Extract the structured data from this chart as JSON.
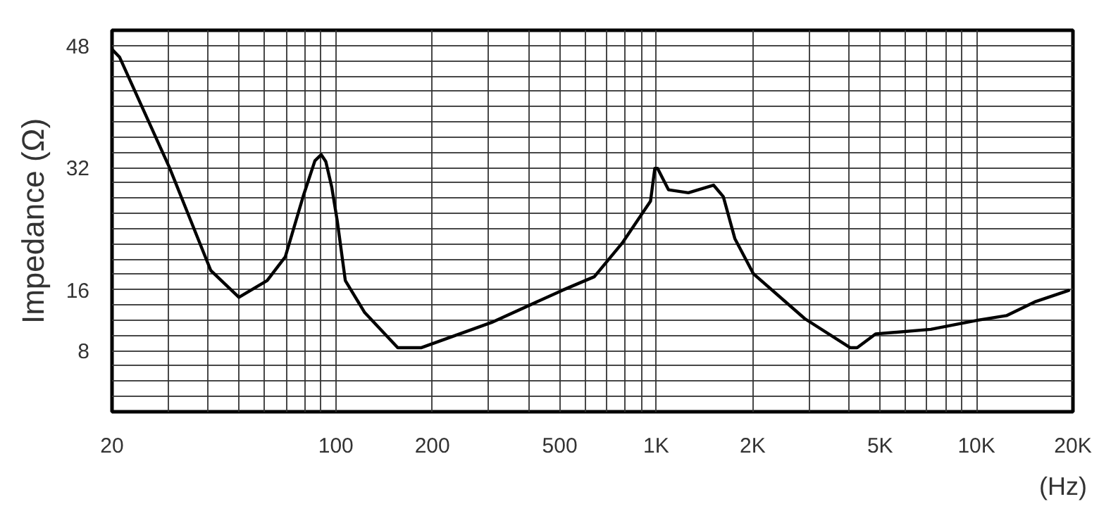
{
  "chart_data": {
    "type": "line",
    "xlabel": "(Hz)",
    "ylabel": "Impedance (Ω)",
    "log": "x",
    "x": [
      20,
      21.1,
      30.3,
      40.7,
      49.8,
      61,
      69.5,
      79,
      86,
      90,
      93,
      97,
      101,
      107,
      123,
      156,
      185,
      306,
      508,
      641,
      783,
      960,
      990,
      1010,
      1092,
      1260,
      1510,
      1620,
      1760,
      2010,
      2910,
      4030,
      4240,
      4840,
      7200,
      10100,
      12400,
      15200,
      19400
    ],
    "series": [
      {
        "color": "#000000",
        "values": [
          47.5,
          46.5,
          31.9,
          18.5,
          15.0,
          17.2,
          20.3,
          28.2,
          32.9,
          33.7,
          32.8,
          29.5,
          25.0,
          17.2,
          13.0,
          8.4,
          8.4,
          11.7,
          15.9,
          17.7,
          22.1,
          27.6,
          31.9,
          31.9,
          29.1,
          28.7,
          29.7,
          28.2,
          22.7,
          18.1,
          12.2,
          8.4,
          8.4,
          10.2,
          10.8,
          12.0,
          12.6,
          14.4,
          15.9
        ]
      }
    ],
    "xlim": [
      20,
      20000
    ],
    "xticks": [
      20,
      {
        "value": 30,
        "label": null
      },
      {
        "value": 40,
        "label": null
      },
      {
        "value": 50,
        "label": null
      },
      {
        "value": 60,
        "label": null
      },
      {
        "value": 70,
        "label": null
      },
      {
        "value": 80,
        "label": null
      },
      {
        "value": 90,
        "label": null
      },
      100,
      200,
      {
        "value": 300,
        "label": null
      },
      {
        "value": 400,
        "label": null
      },
      500,
      {
        "value": 600,
        "label": null
      },
      {
        "value": 700,
        "label": null
      },
      {
        "value": 800,
        "label": null
      },
      {
        "value": 900,
        "label": null
      },
      {
        "value": 1000,
        "label": "1K"
      },
      {
        "value": 2000,
        "label": "2K"
      },
      {
        "value": 3000,
        "label": null
      },
      {
        "value": 4000,
        "label": null
      },
      {
        "value": 5000,
        "label": "5K"
      },
      {
        "value": 6000,
        "label": null
      },
      {
        "value": 7000,
        "label": null
      },
      {
        "value": 8000,
        "label": null
      },
      {
        "value": 9000,
        "label": null
      },
      {
        "value": 10000,
        "label": "10K"
      },
      {
        "value": 20000,
        "label": "20K"
      }
    ],
    "ylim": [
      0,
      50
    ],
    "yticks": [
      {
        "value": 2,
        "label": null
      },
      {
        "value": 4,
        "label": null
      },
      {
        "value": 6,
        "label": null
      },
      8,
      {
        "value": 10,
        "label": null
      },
      {
        "value": 12,
        "label": null
      },
      {
        "value": 14,
        "label": null
      },
      16,
      {
        "value": 18,
        "label": null
      },
      {
        "value": 20,
        "label": null
      },
      {
        "value": 22,
        "label": null
      },
      {
        "value": 24,
        "label": null
      },
      {
        "value": 26,
        "label": null
      },
      {
        "value": 28,
        "label": null
      },
      {
        "value": 30,
        "label": null
      },
      32,
      {
        "value": 34,
        "label": null
      },
      {
        "value": 36,
        "label": null
      },
      {
        "value": 38,
        "label": null
      },
      {
        "value": 40,
        "label": null
      },
      {
        "value": 42,
        "label": null
      },
      {
        "value": 44,
        "label": null
      },
      {
        "value": 46,
        "label": null
      },
      48
    ],
    "grid": true,
    "marker": "none",
    "line_style": "solid"
  }
}
